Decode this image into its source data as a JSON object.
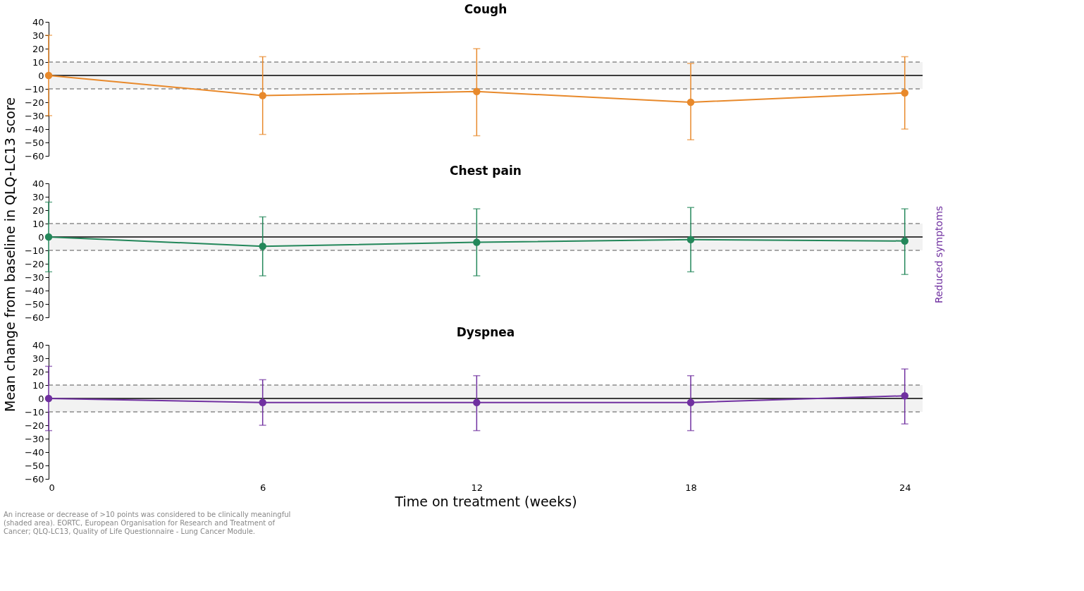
{
  "chart_data": [
    {
      "type": "line",
      "title": "Cough",
      "x": [
        0,
        6,
        12,
        18,
        24
      ],
      "xlim": [
        0,
        24.5
      ],
      "xticks": [
        0,
        6,
        12,
        18,
        24
      ],
      "ylim": [
        -60,
        40
      ],
      "yticks": [
        -60,
        -50,
        -40,
        -30,
        -20,
        -10,
        0,
        10,
        20,
        30,
        40
      ],
      "tick_labels": "y",
      "grid": false,
      "marker": "circle",
      "line_style": "solid",
      "series": [
        {
          "color": "#e8892b",
          "values": [
            0,
            -15,
            -12,
            -20,
            -13
          ],
          "errors": [
            [
              -30,
              30
            ],
            [
              -44,
              14
            ],
            [
              -45,
              20
            ],
            [
              -48,
              9
            ],
            [
              -40,
              14
            ]
          ]
        }
      ],
      "bands": [
        {
          "axis": "y",
          "from": -10,
          "to": 10,
          "color": "#f2f2f2"
        }
      ],
      "ref_lines": [
        {
          "axis": "y",
          "value": 10,
          "color": "#8c8c8c",
          "line_style": "dashed"
        },
        {
          "axis": "y",
          "value": -10,
          "color": "#8c8c8c",
          "line_style": "dashed"
        },
        {
          "axis": "y",
          "value": 0,
          "color": "#000000",
          "line_style": "solid"
        }
      ]
    },
    {
      "type": "line",
      "title": "Chest pain",
      "ylabel": "Mean change from baseline in QLQ-LC13 score",
      "x": [
        0,
        6,
        12,
        18,
        24
      ],
      "xlim": [
        0,
        24.5
      ],
      "xticks": [
        0,
        6,
        12,
        18,
        24
      ],
      "ylim": [
        -60,
        40
      ],
      "yticks": [
        -60,
        -50,
        -40,
        -30,
        -20,
        -10,
        0,
        10,
        20,
        30,
        40
      ],
      "tick_labels": "y",
      "grid": false,
      "marker": "circle",
      "line_style": "solid",
      "series": [
        {
          "color": "#23875a",
          "values": [
            0,
            -7,
            -4,
            -2,
            -3
          ],
          "errors": [
            [
              -26,
              26
            ],
            [
              -29,
              15
            ],
            [
              -29,
              21
            ],
            [
              -26,
              22
            ],
            [
              -28,
              21
            ]
          ]
        }
      ],
      "bands": [
        {
          "axis": "y",
          "from": -10,
          "to": 10,
          "color": "#f2f2f2"
        }
      ],
      "ref_lines": [
        {
          "axis": "y",
          "value": 10,
          "color": "#8c8c8c",
          "line_style": "dashed"
        },
        {
          "axis": "y",
          "value": -10,
          "color": "#8c8c8c",
          "line_style": "dashed"
        },
        {
          "axis": "y",
          "value": 0,
          "color": "#000000",
          "line_style": "solid"
        }
      ]
    },
    {
      "type": "line",
      "title": "Dyspnea",
      "xlabel": "Time on treatment (weeks)",
      "x": [
        0,
        6,
        12,
        18,
        24
      ],
      "xlim": [
        0,
        24.5
      ],
      "xticks": [
        0,
        6,
        12,
        18,
        24
      ],
      "ylim": [
        -60,
        40
      ],
      "yticks": [
        -60,
        -50,
        -40,
        -30,
        -20,
        -10,
        0,
        10,
        20,
        30,
        40
      ],
      "grid": false,
      "marker": "circle",
      "line_style": "solid",
      "series": [
        {
          "color": "#7030a0",
          "values": [
            0,
            -3,
            -3,
            -3,
            2
          ],
          "errors": [
            [
              -24,
              24
            ],
            [
              -20,
              14
            ],
            [
              -24,
              17
            ],
            [
              -24,
              17
            ],
            [
              -19,
              22
            ]
          ]
        }
      ],
      "bands": [
        {
          "axis": "y",
          "from": -10,
          "to": 10,
          "color": "#f2f2f2"
        }
      ],
      "ref_lines": [
        {
          "axis": "y",
          "value": 10,
          "color": "#8c8c8c",
          "line_style": "dashed"
        },
        {
          "axis": "y",
          "value": -10,
          "color": "#8c8c8c",
          "line_style": "dashed"
        },
        {
          "axis": "y",
          "value": 0,
          "color": "#000000",
          "line_style": "solid"
        }
      ],
      "annotations": [
        "Reduced symptoms",
        "An increase or decrease of >10 points was considered to be clinically meaningful (shaded area). EORTC, European Organisation for Research and Treatment of Cancer; QLQ-LC13, Quality of Life Questionnaire - Lung Cancer Module."
      ]
    }
  ]
}
